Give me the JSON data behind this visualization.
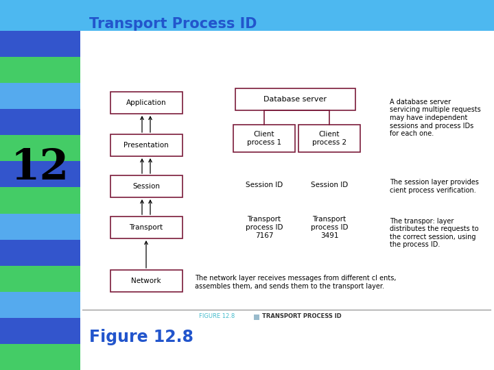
{
  "title": "Transport Process ID",
  "figure_label": "Figure 12.8",
  "figure_caption_small": "FIGURE 12.8",
  "figure_caption_title": "TRANSPORT PROCESS ID",
  "bg_color": "#ffffff",
  "header_color": "#4db8f0",
  "number_text": "12",
  "title_color": "#2255cc",
  "figure_label_color": "#2255cc",
  "box_edge_color": "#7a1a3a",
  "box_fill": "#ffffff",
  "caption_color": "#44bbcc",
  "stripe_pattern": [
    "#3355cc",
    "#44cc66",
    "#55aaee",
    "#3355cc",
    "#44cc66",
    "#3355cc",
    "#44cc66",
    "#55aaee",
    "#3355cc",
    "#44cc66",
    "#55aaee",
    "#3355cc",
    "#44cc66"
  ],
  "left_boxes": [
    "Application",
    "Presentation",
    "Session",
    "Transport",
    "Network"
  ],
  "right_notes_0": "A database server\nservicing multiple requests\nmay have independent\nsessions and process IDs\nfor each one.",
  "right_notes_1": "The session layer provides\ncient process verification.",
  "right_notes_2": "The transpor: layer\ndistributes the requests to\nthe correct session, using\nthe process ID.",
  "network_note": "The network layer receives messages from different cl ents,\nassembles them, and sends them to the transport layer."
}
